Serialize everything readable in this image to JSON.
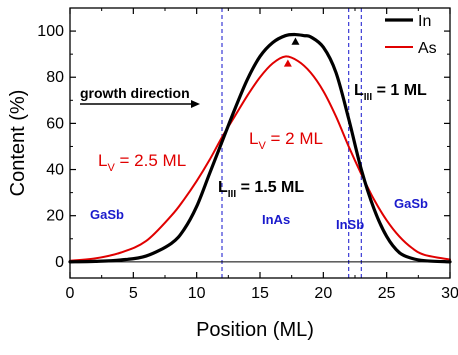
{
  "chart_data": {
    "type": "line",
    "xlabel": "Position (ML)",
    "ylabel": "Content (%)",
    "xlim": [
      0,
      30
    ],
    "ylim": [
      -7,
      110
    ],
    "x_ticks": [
      0,
      5,
      10,
      15,
      20,
      25,
      30
    ],
    "y_ticks": [
      0,
      20,
      40,
      60,
      80,
      100
    ],
    "grid": false,
    "legend_position": "top-right",
    "series": [
      {
        "name": "In",
        "color": "#000000",
        "line_width": 3.2,
        "x": [
          0,
          2,
          4,
          6,
          8,
          9,
          10,
          11,
          12,
          13,
          14,
          15,
          16,
          17,
          17.8,
          18.5,
          19,
          20,
          21,
          22,
          23,
          24,
          25,
          26,
          27,
          28,
          30
        ],
        "y": [
          0,
          0.2,
          0.8,
          2.5,
          8,
          14,
          24,
          38,
          52,
          66,
          79,
          89,
          95,
          98,
          98.5,
          98,
          97.5,
          93,
          82,
          62,
          40,
          23,
          11,
          4,
          1.5,
          0.5,
          0
        ]
      },
      {
        "name": "As",
        "color": "#e00000",
        "line_width": 2,
        "x": [
          0,
          2,
          4,
          6,
          8,
          9,
          10,
          11,
          12,
          13,
          14,
          15,
          16,
          17,
          18,
          19,
          20,
          21,
          22,
          23,
          24,
          25,
          26,
          27,
          28,
          30
        ],
        "y": [
          0.5,
          1.5,
          4,
          9,
          20,
          27,
          35,
          44,
          54,
          63,
          72,
          80,
          86,
          89,
          87,
          82,
          74,
          63,
          50,
          38,
          27,
          18,
          11,
          6,
          3,
          1
        ]
      }
    ],
    "reference_lines": [
      {
        "x": 12,
        "color": "#3a3ad6"
      },
      {
        "x": 22,
        "color": "#3a3ad6"
      },
      {
        "x": 23,
        "color": "#3a3ad6"
      }
    ],
    "horizontal_lines": [
      {
        "y": 0,
        "color": "#000000"
      }
    ],
    "markers": [
      {
        "x": 17.8,
        "y": 98.5,
        "color": "#000000"
      },
      {
        "x": 17.2,
        "y": 89,
        "color": "#e00000"
      }
    ],
    "annotations": [
      {
        "id": "growth",
        "text": "growth direction",
        "color": "#000000"
      },
      {
        "id": "lv25",
        "text": "L",
        "sub": "V",
        "rest": " = 2.5 ML",
        "color": "#e00000"
      },
      {
        "id": "lv2",
        "text": "L",
        "sub": "V",
        "rest": " = 2 ML",
        "color": "#e00000"
      },
      {
        "id": "liii15",
        "text": "L",
        "sub": "III",
        "rest": " = 1.5 ML",
        "color": "#000000"
      },
      {
        "id": "liii1",
        "text": "L",
        "sub": "III",
        "rest": " = 1 ML",
        "color": "#000000"
      },
      {
        "id": "gasb-left",
        "text": "GaSb",
        "color": "#1a1acc"
      },
      {
        "id": "inas",
        "text": "InAs",
        "color": "#1a1acc"
      },
      {
        "id": "insb",
        "text": "InSb",
        "color": "#1a1acc"
      },
      {
        "id": "gasb-right",
        "text": "GaSb",
        "color": "#1a1acc"
      }
    ]
  }
}
